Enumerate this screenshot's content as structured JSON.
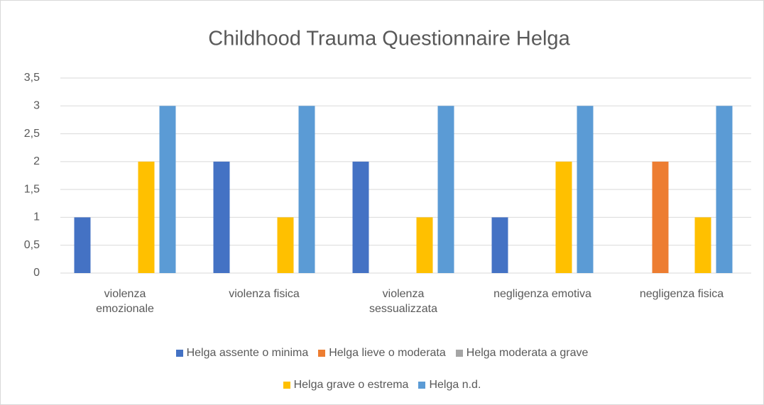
{
  "chart_data": {
    "type": "bar",
    "title": "Childhood Trauma Questionnaire Helga",
    "categories": [
      "violenza emozionale",
      "violenza fisica",
      "violenza sessualizzata",
      "negligenza emotiva",
      "negligenza fisica"
    ],
    "series": [
      {
        "name": "Helga assente o minima",
        "color": "#4472c4",
        "values": [
          1,
          2,
          2,
          1,
          0
        ]
      },
      {
        "name": "Helga lieve o moderata",
        "color": "#ed7d31",
        "values": [
          0,
          0,
          0,
          0,
          2
        ]
      },
      {
        "name": "Helga moderata a grave",
        "color": "#a5a5a5",
        "values": [
          0,
          0,
          0,
          0,
          0
        ]
      },
      {
        "name": "Helga grave o estrema",
        "color": "#ffc000",
        "values": [
          2,
          1,
          1,
          2,
          1
        ]
      },
      {
        "name": "Helga n.d.",
        "color": "#5b9bd5",
        "values": [
          3,
          3,
          3,
          3,
          3
        ]
      }
    ],
    "ylim": [
      0,
      3.5
    ],
    "yticks": [
      0,
      {
        "value": 0.5,
        "label": "0,5"
      },
      1,
      {
        "value": 1.5,
        "label": "1,5"
      },
      2,
      {
        "value": 2.5,
        "label": "2,5"
      },
      3,
      {
        "value": 3.5,
        "label": "3,5"
      }
    ],
    "grid": true,
    "legend": "bottom"
  }
}
